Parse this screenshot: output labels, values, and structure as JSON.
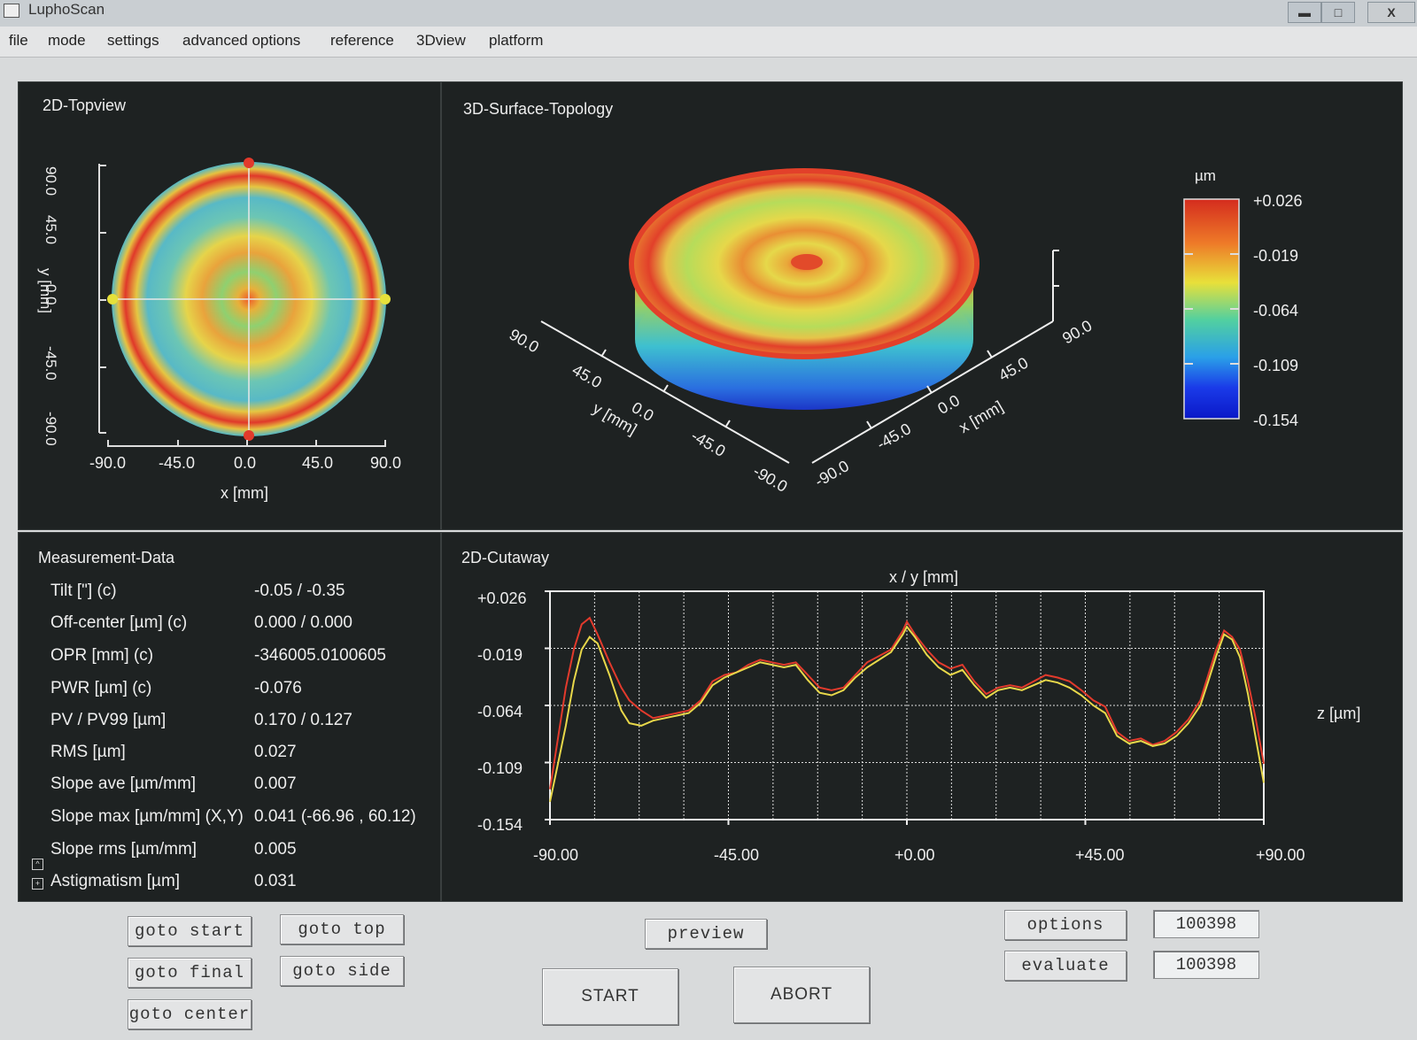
{
  "window": {
    "title": "LuphoScan",
    "minimize": "▬",
    "maximize": "□",
    "close": "X"
  },
  "menu": [
    "file",
    "mode",
    "settings",
    "advanced options",
    "reference",
    "3Dview",
    "platform"
  ],
  "topview": {
    "title": "2D-Topview",
    "x_label": "x [mm]",
    "y_label": "y [mm]",
    "x_ticks": [
      "-90.0",
      "-45.0",
      "0.0",
      "45.0",
      "90.0"
    ],
    "y_ticks": [
      "90.0",
      "45.0",
      "0.0",
      "-45.0",
      "-90.0"
    ]
  },
  "surface3d": {
    "title": "3D-Surface-Topology",
    "y_axis_label": "y [mm]",
    "x_axis_label": "x [mm]",
    "y_ticks": [
      "90.0",
      "45.0",
      "0.0",
      "-45.0",
      "-90.0"
    ],
    "x_ticks": [
      "-90.0",
      "-45.0",
      "0.0",
      "45.0",
      "90.0"
    ],
    "colorbar_unit": "µm",
    "colorbar_ticks": [
      "+0.026",
      "-0.019",
      "-0.064",
      "-0.109",
      "-0.154"
    ]
  },
  "measurement": {
    "title": "Measurement-Data",
    "rows": [
      {
        "label": "Tilt [\"]  (c)",
        "value": "-0.05 / -0.35"
      },
      {
        "label": "Off-center [µm]  (c)",
        "value": "0.000 / 0.000"
      },
      {
        "label": "OPR [mm]  (c)",
        "value": "-346005.0100605"
      },
      {
        "label": "PWR [µm]  (c)",
        "value": "-0.076"
      },
      {
        "label": "PV / PV99 [µm]",
        "value": "0.170 / 0.127"
      },
      {
        "label": "RMS [µm]",
        "value": "0.027"
      },
      {
        "label": "Slope ave [µm/mm]",
        "value": "0.007"
      },
      {
        "label": "Slope max [µm/mm] (X,Y)",
        "value": "0.041   (-66.96 , 60.12)"
      },
      {
        "label": "Slope rms [µm/mm]",
        "value": "0.005"
      },
      {
        "label": "Astigmatism [µm]",
        "value": "0.031"
      }
    ]
  },
  "chart_data": {
    "type": "line",
    "title": "2D-Cutaway",
    "xlabel": "x / y [mm]",
    "ylabel": "z [µm]",
    "xlim": [
      -90,
      90
    ],
    "ylim": [
      -0.154,
      0.026
    ],
    "x_ticks": [
      "-90.00",
      "-45.00",
      "+0.00",
      "+45.00",
      "+90.00"
    ],
    "y_ticks": [
      "+0.026",
      "-0.019",
      "-0.064",
      "-0.109",
      "-0.154"
    ],
    "grid": true,
    "series": [
      {
        "color": "#e23a2c",
        "x": [
          -90,
          -88,
          -86,
          -84,
          -82,
          -80,
          -78,
          -75,
          -72,
          -70,
          -67,
          -64,
          -61,
          -58,
          -55,
          -52,
          -49,
          -46,
          -43,
          -40,
          -37,
          -34,
          -31,
          -28,
          -25,
          -22,
          -19,
          -16,
          -13,
          -10,
          -7,
          -4,
          -1,
          0,
          2,
          5,
          8,
          11,
          14,
          17,
          20,
          23,
          26,
          29,
          32,
          35,
          38,
          41,
          44,
          47,
          50,
          53,
          56,
          59,
          62,
          65,
          68,
          71,
          74,
          76,
          78,
          80,
          82,
          84,
          86,
          88,
          90
        ],
        "y": [
          -0.13,
          -0.09,
          -0.05,
          -0.02,
          0.0,
          0.005,
          -0.008,
          -0.03,
          -0.05,
          -0.06,
          -0.068,
          -0.074,
          -0.072,
          -0.07,
          -0.068,
          -0.06,
          -0.045,
          -0.04,
          -0.038,
          -0.032,
          -0.028,
          -0.03,
          -0.032,
          -0.03,
          -0.04,
          -0.05,
          -0.052,
          -0.05,
          -0.04,
          -0.03,
          -0.025,
          -0.02,
          -0.005,
          0.002,
          -0.008,
          -0.02,
          -0.03,
          -0.035,
          -0.032,
          -0.045,
          -0.055,
          -0.05,
          -0.048,
          -0.05,
          -0.045,
          -0.04,
          -0.042,
          -0.045,
          -0.052,
          -0.06,
          -0.065,
          -0.085,
          -0.092,
          -0.09,
          -0.095,
          -0.092,
          -0.085,
          -0.075,
          -0.06,
          -0.04,
          -0.02,
          -0.005,
          -0.01,
          -0.02,
          -0.045,
          -0.075,
          -0.11
        ]
      },
      {
        "color": "#e8d84a",
        "x": [
          -90,
          -88,
          -86,
          -84,
          -82,
          -80,
          -78,
          -75,
          -72,
          -70,
          -67,
          -64,
          -61,
          -58,
          -55,
          -52,
          -49,
          -46,
          -43,
          -40,
          -37,
          -34,
          -31,
          -28,
          -25,
          -22,
          -19,
          -16,
          -13,
          -10,
          -7,
          -4,
          -1,
          0,
          2,
          5,
          8,
          11,
          14,
          17,
          20,
          23,
          26,
          29,
          32,
          35,
          38,
          41,
          44,
          47,
          50,
          53,
          56,
          59,
          62,
          65,
          68,
          71,
          74,
          76,
          78,
          80,
          82,
          84,
          86,
          88,
          90
        ],
        "y": [
          -0.14,
          -0.11,
          -0.08,
          -0.045,
          -0.02,
          -0.01,
          -0.015,
          -0.04,
          -0.068,
          -0.078,
          -0.08,
          -0.076,
          -0.074,
          -0.072,
          -0.07,
          -0.062,
          -0.048,
          -0.042,
          -0.038,
          -0.034,
          -0.03,
          -0.032,
          -0.034,
          -0.032,
          -0.044,
          -0.054,
          -0.056,
          -0.052,
          -0.042,
          -0.034,
          -0.028,
          -0.022,
          -0.008,
          -0.002,
          -0.01,
          -0.024,
          -0.034,
          -0.04,
          -0.036,
          -0.048,
          -0.058,
          -0.052,
          -0.05,
          -0.052,
          -0.048,
          -0.044,
          -0.046,
          -0.05,
          -0.056,
          -0.064,
          -0.07,
          -0.088,
          -0.094,
          -0.092,
          -0.096,
          -0.094,
          -0.088,
          -0.078,
          -0.064,
          -0.045,
          -0.025,
          -0.008,
          -0.012,
          -0.026,
          -0.055,
          -0.09,
          -0.125
        ]
      }
    ]
  },
  "buttons": {
    "goto_start": "goto start",
    "goto_top": "goto top",
    "goto_final": "goto final",
    "goto_side": "goto side",
    "goto_center": "goto center",
    "preview": "preview",
    "start": "START",
    "abort": "ABORT",
    "options": "options",
    "evaluate": "evaluate"
  },
  "fields": {
    "field1": "100398",
    "field2": "100398"
  }
}
